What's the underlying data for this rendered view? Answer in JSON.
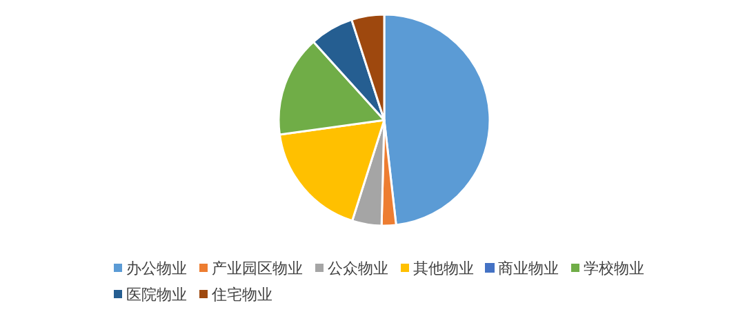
{
  "chart_data": {
    "type": "pie",
    "categories": [
      "办公物业",
      "产业园区物业",
      "公众物业",
      "其他物业",
      "商业物业",
      "学校物业",
      "医院物业",
      "住宅物业"
    ],
    "values": [
      48.2,
      2.2,
      4.5,
      17.9,
      0,
      15.5,
      6.7,
      5.0
    ],
    "colors": [
      "#5b9bd5",
      "#ed7d31",
      "#a5a5a5",
      "#ffc000",
      "#4472c4",
      "#70ad47",
      "#255e91",
      "#9e480e"
    ],
    "legend": "bottom"
  }
}
